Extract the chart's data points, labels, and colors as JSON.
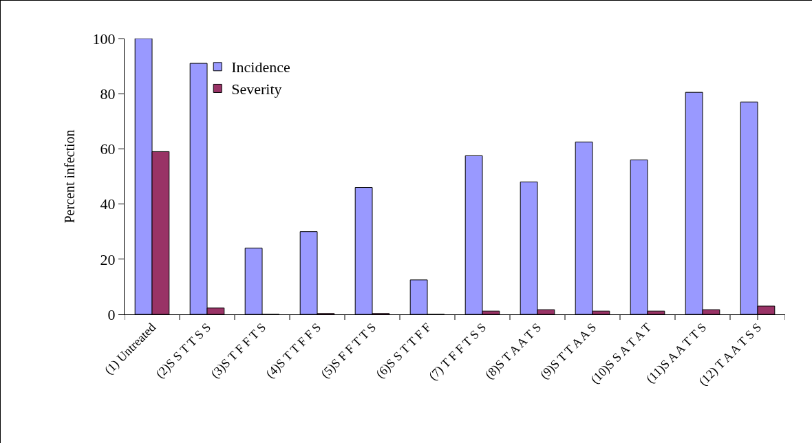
{
  "chart_data": {
    "type": "bar",
    "ylabel": "Percent infection",
    "categories": [
      "(1) Untreated",
      "(2)S S T T S S",
      "(3)S T F F T S",
      "(4)S T T F F S",
      "(5)S F F T T S",
      "(6)S S T T F F",
      "(7) T F F T S S",
      "(8)S T A A T S",
      "(9)S T T A A S",
      "(10)S S A T A T",
      "(11)S A A T T S",
      "(12) T A A T S S"
    ],
    "series": [
      {
        "name": "Incidence",
        "color": "#9999ff",
        "values": [
          100,
          91,
          24,
          30,
          46,
          12.5,
          57.5,
          48,
          62.5,
          56,
          80.5,
          77
        ]
      },
      {
        "name": "Severity",
        "color": "#993366",
        "values": [
          59,
          2.3,
          0,
          0.3,
          0.3,
          0,
          1.2,
          1.7,
          1.2,
          1.2,
          1.7,
          3
        ]
      }
    ],
    "ylim": [
      0,
      100
    ],
    "yticks": [
      0,
      20,
      40,
      60,
      80,
      100
    ],
    "grid": false,
    "legend": "top left"
  }
}
